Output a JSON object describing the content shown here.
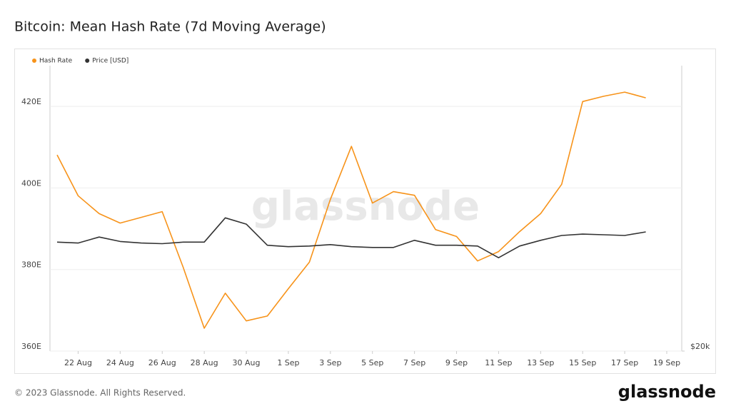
{
  "chart_data": {
    "type": "line",
    "title": "Bitcoin: Mean Hash Rate (7d Moving Average)",
    "x": [
      "21 Aug",
      "22 Aug",
      "23 Aug",
      "24 Aug",
      "25 Aug",
      "26 Aug",
      "27 Aug",
      "28 Aug",
      "29 Aug",
      "30 Aug",
      "31 Aug",
      "1 Sep",
      "2 Sep",
      "3 Sep",
      "4 Sep",
      "5 Sep",
      "6 Sep",
      "7 Sep",
      "8 Sep",
      "9 Sep",
      "10 Sep",
      "11 Sep",
      "12 Sep",
      "13 Sep",
      "14 Sep",
      "15 Sep",
      "16 Sep",
      "17 Sep",
      "18 Sep"
    ],
    "xlim": [
      "21 Aug",
      "19 Sep"
    ],
    "xticks": [
      "22 Aug",
      "24 Aug",
      "26 Aug",
      "28 Aug",
      "30 Aug",
      "1 Sep",
      "3 Sep",
      "5 Sep",
      "7 Sep",
      "9 Sep",
      "11 Sep",
      "13 Sep",
      "15 Sep",
      "17 Sep",
      "19 Sep"
    ],
    "ylim": [
      360,
      430
    ],
    "yticks": [
      {
        "value": 360,
        "label": "360E"
      },
      {
        "value": 380,
        "label": "380E"
      },
      {
        "value": 400,
        "label": "400E"
      },
      {
        "value": 420,
        "label": "420E"
      }
    ],
    "y2lim": [
      20000,
      40000
    ],
    "y2log": true,
    "y2ticks": [
      {
        "value": 20000,
        "label": "$20k"
      }
    ],
    "grid": true,
    "legend": "top-left",
    "series": [
      {
        "name": "Hash Rate",
        "color": "#f7931a",
        "values": [
          408.1,
          398.1,
          393.7,
          391.4,
          392.8,
          394.2,
          380.5,
          365.6,
          374.2,
          367.4,
          368.6,
          375.3,
          381.8,
          397.2,
          410.2,
          396.3,
          399.1,
          398.2,
          389.8,
          388.1,
          382.1,
          384.4,
          389.3,
          393.7,
          400.9,
          421.2,
          422.5,
          423.5,
          422.1
        ]
      },
      {
        "name": "Price [USD]",
        "color": "#333333",
        "axis": "y2",
        "values": [
          26060,
          26000,
          26380,
          26100,
          26000,
          25960,
          26060,
          26060,
          27640,
          27220,
          25860,
          25770,
          25810,
          25900,
          25770,
          25720,
          25720,
          26170,
          25860,
          25860,
          25810,
          25090,
          25810,
          26170,
          26480,
          26570,
          26530,
          26480,
          26710
        ]
      }
    ],
    "watermark": "glassnode"
  },
  "footer": {
    "copyright": "© 2023 Glassnode. All Rights Reserved.",
    "logo": "glassnode"
  }
}
